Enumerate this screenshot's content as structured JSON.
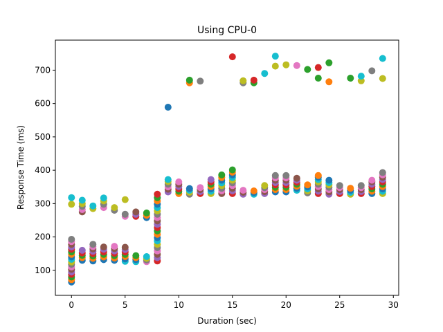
{
  "chart_data": {
    "type": "scatter",
    "title": "Using CPU-0",
    "xlabel": "Duration (sec)",
    "ylabel": "Response Time (ms)",
    "xlim": [
      -1.5,
      30.5
    ],
    "ylim": [
      25,
      790
    ],
    "xticks": [
      0,
      5,
      10,
      15,
      20,
      25,
      30
    ],
    "yticks": [
      100,
      200,
      300,
      400,
      500,
      600,
      700
    ],
    "grid": false,
    "legend": "none",
    "palette": [
      "#1f77b4",
      "#ff7f0e",
      "#2ca02c",
      "#d62728",
      "#9467bd",
      "#8c564b",
      "#e377c2",
      "#7f7f7f",
      "#bcbd22",
      "#17becf"
    ],
    "points": [
      {
        "x": 0,
        "y": 65
      },
      {
        "x": 0,
        "y": 72
      },
      {
        "x": 0,
        "y": 80
      },
      {
        "x": 0,
        "y": 88
      },
      {
        "x": 0,
        "y": 95
      },
      {
        "x": 0,
        "y": 103
      },
      {
        "x": 0,
        "y": 110
      },
      {
        "x": 0,
        "y": 118
      },
      {
        "x": 0,
        "y": 125
      },
      {
        "x": 0,
        "y": 133
      },
      {
        "x": 0,
        "y": 140
      },
      {
        "x": 0,
        "y": 148
      },
      {
        "x": 0,
        "y": 155
      },
      {
        "x": 0,
        "y": 163
      },
      {
        "x": 0,
        "y": 170
      },
      {
        "x": 0,
        "y": 178
      },
      {
        "x": 0,
        "y": 186
      },
      {
        "x": 0,
        "y": 193
      },
      {
        "x": 0,
        "y": 298
      },
      {
        "x": 0,
        "y": 318
      },
      {
        "x": 1,
        "y": 130
      },
      {
        "x": 1,
        "y": 138
      },
      {
        "x": 1,
        "y": 145
      },
      {
        "x": 1,
        "y": 152
      },
      {
        "x": 1,
        "y": 160
      },
      {
        "x": 1,
        "y": 275
      },
      {
        "x": 1,
        "y": 282
      },
      {
        "x": 1,
        "y": 292
      },
      {
        "x": 1,
        "y": 300
      },
      {
        "x": 1,
        "y": 310
      },
      {
        "x": 2,
        "y": 128
      },
      {
        "x": 2,
        "y": 136
      },
      {
        "x": 2,
        "y": 143
      },
      {
        "x": 2,
        "y": 150
      },
      {
        "x": 2,
        "y": 157
      },
      {
        "x": 2,
        "y": 164
      },
      {
        "x": 2,
        "y": 171
      },
      {
        "x": 2,
        "y": 178
      },
      {
        "x": 2,
        "y": 285
      },
      {
        "x": 2,
        "y": 293
      },
      {
        "x": 3,
        "y": 132
      },
      {
        "x": 3,
        "y": 140
      },
      {
        "x": 3,
        "y": 148
      },
      {
        "x": 3,
        "y": 155
      },
      {
        "x": 3,
        "y": 163
      },
      {
        "x": 3,
        "y": 170
      },
      {
        "x": 3,
        "y": 288
      },
      {
        "x": 3,
        "y": 298
      },
      {
        "x": 3,
        "y": 308
      },
      {
        "x": 3,
        "y": 317
      },
      {
        "x": 4,
        "y": 130
      },
      {
        "x": 4,
        "y": 137
      },
      {
        "x": 4,
        "y": 144
      },
      {
        "x": 4,
        "y": 151
      },
      {
        "x": 4,
        "y": 158
      },
      {
        "x": 4,
        "y": 165
      },
      {
        "x": 4,
        "y": 172
      },
      {
        "x": 4,
        "y": 280
      },
      {
        "x": 4,
        "y": 288
      },
      {
        "x": 5,
        "y": 127
      },
      {
        "x": 5,
        "y": 134
      },
      {
        "x": 5,
        "y": 141
      },
      {
        "x": 5,
        "y": 148
      },
      {
        "x": 5,
        "y": 155
      },
      {
        "x": 5,
        "y": 162
      },
      {
        "x": 5,
        "y": 169
      },
      {
        "x": 5,
        "y": 262
      },
      {
        "x": 5,
        "y": 268
      },
      {
        "x": 5,
        "y": 312
      },
      {
        "x": 6,
        "y": 126
      },
      {
        "x": 6,
        "y": 132
      },
      {
        "x": 6,
        "y": 138
      },
      {
        "x": 6,
        "y": 144
      },
      {
        "x": 6,
        "y": 262
      },
      {
        "x": 6,
        "y": 268
      },
      {
        "x": 6,
        "y": 275
      },
      {
        "x": 7,
        "y": 126
      },
      {
        "x": 7,
        "y": 131
      },
      {
        "x": 7,
        "y": 136
      },
      {
        "x": 7,
        "y": 141
      },
      {
        "x": 7,
        "y": 258
      },
      {
        "x": 7,
        "y": 265
      },
      {
        "x": 7,
        "y": 272
      },
      {
        "x": 8,
        "y": 128
      },
      {
        "x": 8,
        "y": 138
      },
      {
        "x": 8,
        "y": 148
      },
      {
        "x": 8,
        "y": 158
      },
      {
        "x": 8,
        "y": 168
      },
      {
        "x": 8,
        "y": 178
      },
      {
        "x": 8,
        "y": 188
      },
      {
        "x": 8,
        "y": 198
      },
      {
        "x": 8,
        "y": 208
      },
      {
        "x": 8,
        "y": 218
      },
      {
        "x": 8,
        "y": 228
      },
      {
        "x": 8,
        "y": 238
      },
      {
        "x": 8,
        "y": 248
      },
      {
        "x": 8,
        "y": 258
      },
      {
        "x": 8,
        "y": 268
      },
      {
        "x": 8,
        "y": 278
      },
      {
        "x": 8,
        "y": 288
      },
      {
        "x": 8,
        "y": 298
      },
      {
        "x": 8,
        "y": 308
      },
      {
        "x": 8,
        "y": 318
      },
      {
        "x": 8,
        "y": 328
      },
      {
        "x": 9,
        "y": 335
      },
      {
        "x": 9,
        "y": 343
      },
      {
        "x": 9,
        "y": 350
      },
      {
        "x": 9,
        "y": 358
      },
      {
        "x": 9,
        "y": 366
      },
      {
        "x": 9,
        "y": 372
      },
      {
        "x": 9,
        "y": 589
      },
      {
        "x": 10,
        "y": 330
      },
      {
        "x": 10,
        "y": 337
      },
      {
        "x": 10,
        "y": 344
      },
      {
        "x": 10,
        "y": 351
      },
      {
        "x": 10,
        "y": 358
      },
      {
        "x": 10,
        "y": 365
      },
      {
        "x": 11,
        "y": 328
      },
      {
        "x": 11,
        "y": 334
      },
      {
        "x": 11,
        "y": 340
      },
      {
        "x": 11,
        "y": 345
      },
      {
        "x": 11,
        "y": 662
      },
      {
        "x": 11,
        "y": 670
      },
      {
        "x": 12,
        "y": 330
      },
      {
        "x": 12,
        "y": 336
      },
      {
        "x": 12,
        "y": 342
      },
      {
        "x": 12,
        "y": 348
      },
      {
        "x": 12,
        "y": 667
      },
      {
        "x": 13,
        "y": 330
      },
      {
        "x": 13,
        "y": 337
      },
      {
        "x": 13,
        "y": 344
      },
      {
        "x": 13,
        "y": 351
      },
      {
        "x": 13,
        "y": 358
      },
      {
        "x": 13,
        "y": 365
      },
      {
        "x": 13,
        "y": 372
      },
      {
        "x": 14,
        "y": 330
      },
      {
        "x": 14,
        "y": 338
      },
      {
        "x": 14,
        "y": 346
      },
      {
        "x": 14,
        "y": 354
      },
      {
        "x": 14,
        "y": 362
      },
      {
        "x": 14,
        "y": 370
      },
      {
        "x": 14,
        "y": 378
      },
      {
        "x": 14,
        "y": 386
      },
      {
        "x": 15,
        "y": 330
      },
      {
        "x": 15,
        "y": 338
      },
      {
        "x": 15,
        "y": 346
      },
      {
        "x": 15,
        "y": 354
      },
      {
        "x": 15,
        "y": 362
      },
      {
        "x": 15,
        "y": 370
      },
      {
        "x": 15,
        "y": 378
      },
      {
        "x": 15,
        "y": 386
      },
      {
        "x": 15,
        "y": 394
      },
      {
        "x": 15,
        "y": 401
      },
      {
        "x": 15,
        "y": 740
      },
      {
        "x": 16,
        "y": 328
      },
      {
        "x": 16,
        "y": 334
      },
      {
        "x": 16,
        "y": 340
      },
      {
        "x": 16,
        "y": 662
      },
      {
        "x": 16,
        "y": 668
      },
      {
        "x": 17,
        "y": 328
      },
      {
        "x": 17,
        "y": 333
      },
      {
        "x": 17,
        "y": 338
      },
      {
        "x": 17,
        "y": 662
      },
      {
        "x": 17,
        "y": 670
      },
      {
        "x": 18,
        "y": 330
      },
      {
        "x": 18,
        "y": 336
      },
      {
        "x": 18,
        "y": 342
      },
      {
        "x": 18,
        "y": 348
      },
      {
        "x": 18,
        "y": 354
      },
      {
        "x": 18,
        "y": 690
      },
      {
        "x": 19,
        "y": 335
      },
      {
        "x": 19,
        "y": 342
      },
      {
        "x": 19,
        "y": 349
      },
      {
        "x": 19,
        "y": 356
      },
      {
        "x": 19,
        "y": 363
      },
      {
        "x": 19,
        "y": 370
      },
      {
        "x": 19,
        "y": 377
      },
      {
        "x": 19,
        "y": 384
      },
      {
        "x": 19,
        "y": 712
      },
      {
        "x": 19,
        "y": 742
      },
      {
        "x": 20,
        "y": 335
      },
      {
        "x": 20,
        "y": 342
      },
      {
        "x": 20,
        "y": 349
      },
      {
        "x": 20,
        "y": 356
      },
      {
        "x": 20,
        "y": 363
      },
      {
        "x": 20,
        "y": 370
      },
      {
        "x": 20,
        "y": 377
      },
      {
        "x": 20,
        "y": 384
      },
      {
        "x": 20,
        "y": 716
      },
      {
        "x": 21,
        "y": 340
      },
      {
        "x": 21,
        "y": 346
      },
      {
        "x": 21,
        "y": 352
      },
      {
        "x": 21,
        "y": 358
      },
      {
        "x": 21,
        "y": 364
      },
      {
        "x": 21,
        "y": 370
      },
      {
        "x": 21,
        "y": 376
      },
      {
        "x": 21,
        "y": 714
      },
      {
        "x": 22,
        "y": 332
      },
      {
        "x": 22,
        "y": 338
      },
      {
        "x": 22,
        "y": 344
      },
      {
        "x": 22,
        "y": 350
      },
      {
        "x": 22,
        "y": 356
      },
      {
        "x": 22,
        "y": 702
      },
      {
        "x": 23,
        "y": 330
      },
      {
        "x": 23,
        "y": 337
      },
      {
        "x": 23,
        "y": 344
      },
      {
        "x": 23,
        "y": 351
      },
      {
        "x": 23,
        "y": 358
      },
      {
        "x": 23,
        "y": 365
      },
      {
        "x": 23,
        "y": 372
      },
      {
        "x": 23,
        "y": 379
      },
      {
        "x": 23,
        "y": 384
      },
      {
        "x": 23,
        "y": 676
      },
      {
        "x": 23,
        "y": 708
      },
      {
        "x": 24,
        "y": 328
      },
      {
        "x": 24,
        "y": 335
      },
      {
        "x": 24,
        "y": 342
      },
      {
        "x": 24,
        "y": 349
      },
      {
        "x": 24,
        "y": 356
      },
      {
        "x": 24,
        "y": 363
      },
      {
        "x": 24,
        "y": 370
      },
      {
        "x": 24,
        "y": 665
      },
      {
        "x": 24,
        "y": 722
      },
      {
        "x": 25,
        "y": 330
      },
      {
        "x": 25,
        "y": 336
      },
      {
        "x": 25,
        "y": 342
      },
      {
        "x": 25,
        "y": 348
      },
      {
        "x": 25,
        "y": 354
      },
      {
        "x": 26,
        "y": 328
      },
      {
        "x": 26,
        "y": 334
      },
      {
        "x": 26,
        "y": 340
      },
      {
        "x": 26,
        "y": 346
      },
      {
        "x": 26,
        "y": 676
      },
      {
        "x": 27,
        "y": 330
      },
      {
        "x": 27,
        "y": 336
      },
      {
        "x": 27,
        "y": 342
      },
      {
        "x": 27,
        "y": 348
      },
      {
        "x": 27,
        "y": 354
      },
      {
        "x": 27,
        "y": 668
      },
      {
        "x": 27,
        "y": 682
      },
      {
        "x": 28,
        "y": 330
      },
      {
        "x": 28,
        "y": 337
      },
      {
        "x": 28,
        "y": 344
      },
      {
        "x": 28,
        "y": 351
      },
      {
        "x": 28,
        "y": 358
      },
      {
        "x": 28,
        "y": 365
      },
      {
        "x": 28,
        "y": 370
      },
      {
        "x": 28,
        "y": 698
      },
      {
        "x": 29,
        "y": 330
      },
      {
        "x": 29,
        "y": 337
      },
      {
        "x": 29,
        "y": 344
      },
      {
        "x": 29,
        "y": 351
      },
      {
        "x": 29,
        "y": 358
      },
      {
        "x": 29,
        "y": 365
      },
      {
        "x": 29,
        "y": 372
      },
      {
        "x": 29,
        "y": 379
      },
      {
        "x": 29,
        "y": 386
      },
      {
        "x": 29,
        "y": 393
      },
      {
        "x": 29,
        "y": 675
      },
      {
        "x": 29,
        "y": 735
      }
    ]
  }
}
